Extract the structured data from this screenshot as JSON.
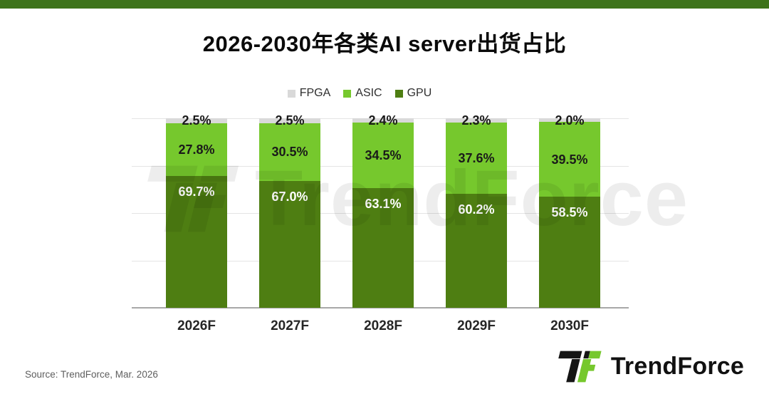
{
  "banner": {
    "color": "#3d731a"
  },
  "title": "2026-2030年各类AI server出货占比",
  "legend": {
    "items": [
      {
        "label": "FPGA",
        "color": "#d9d9d9"
      },
      {
        "label": "ASIC",
        "color": "#76c82d"
      },
      {
        "label": "GPU",
        "color": "#4e7e12"
      }
    ]
  },
  "chart_data": {
    "type": "bar",
    "stacked": true,
    "title": "2026-2030年各类AI server出货占比",
    "categories": [
      "2026F",
      "2027F",
      "2028F",
      "2029F",
      "2030F"
    ],
    "series": [
      {
        "name": "GPU",
        "color": "#4e7e12",
        "label_color": "#ffffff",
        "label_position": "inside-top",
        "values": [
          69.7,
          67.0,
          63.1,
          60.2,
          58.5
        ],
        "labels": [
          "69.7%",
          "67.0%",
          "63.1%",
          "60.2%",
          "58.5%"
        ]
      },
      {
        "name": "ASIC",
        "color": "#76c82d",
        "label_color": "#1a1a1a",
        "label_position": "center",
        "values": [
          27.8,
          30.5,
          34.5,
          37.6,
          39.5
        ],
        "labels": [
          "27.8%",
          "30.5%",
          "34.5%",
          "37.6%",
          "39.5%"
        ]
      },
      {
        "name": "FPGA",
        "color": "#d9d9d9",
        "label_color": "#1a1a1a",
        "label_position": "center",
        "values": [
          2.5,
          2.5,
          2.4,
          2.3,
          2.0
        ],
        "labels": [
          "2.5%",
          "2.5%",
          "2.4%",
          "2.3%",
          "2.0%"
        ]
      }
    ],
    "xlabel": "",
    "ylabel": "",
    "ylim": [
      0,
      100
    ],
    "grid": true,
    "gridline_percents": [
      25,
      50,
      75,
      100
    ],
    "legend_position": "top",
    "legend_order": [
      "FPGA",
      "ASIC",
      "GPU"
    ]
  },
  "watermark": {
    "text": "TrendForce"
  },
  "footer": {
    "source": "Source: TrendForce, Mar. 2026",
    "brand": "TrendForce"
  }
}
